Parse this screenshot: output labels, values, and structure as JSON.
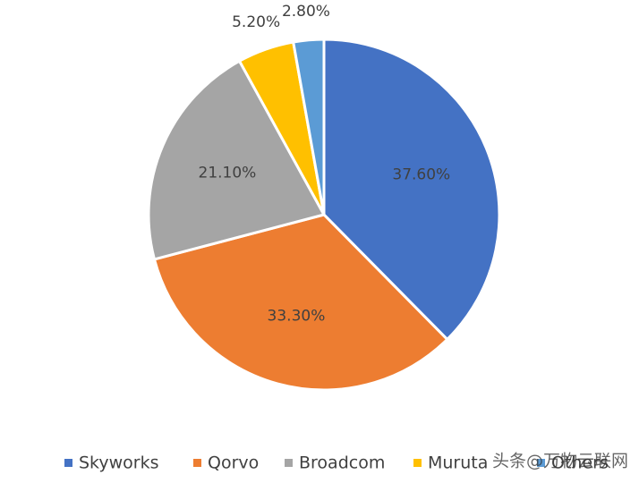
{
  "chart_data": {
    "type": "pie",
    "categories": [
      "Skyworks",
      "Qorvo",
      "Broadcom",
      "Muruta",
      "Others"
    ],
    "values": [
      37.6,
      33.3,
      21.1,
      5.2,
      2.8
    ],
    "value_labels": [
      "37.60%",
      "33.30%",
      "21.10%",
      "5.20%",
      "2.80%"
    ],
    "colors": [
      "#4472c4",
      "#ed7d31",
      "#a5a5a5",
      "#ffc000",
      "#5b9bd5"
    ],
    "legend": "bottom"
  },
  "watermark": "头条@万物云联网"
}
